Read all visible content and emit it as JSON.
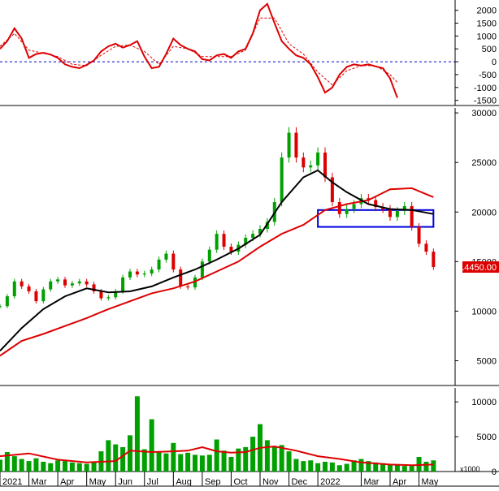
{
  "chart_data": [
    {
      "type": "line",
      "panel": "macd",
      "ylim": [
        -1700,
        2400
      ],
      "yticks": [
        "2000",
        "1500",
        "1000",
        "500",
        "0",
        "-500",
        "-1000",
        "-1500"
      ],
      "ytick_values": [
        2000,
        1500,
        1000,
        500,
        0,
        -500,
        -1000,
        -1500
      ],
      "zero_line": true,
      "series": [
        {
          "name": "",
          "color": "#dd0000",
          "style": "solid",
          "points": [
            [
              0,
              500
            ],
            [
              1,
              800
            ],
            [
              2,
              1300
            ],
            [
              3,
              900
            ],
            [
              4,
              150
            ],
            [
              5,
              300
            ],
            [
              6,
              350
            ],
            [
              7,
              280
            ],
            [
              8,
              150
            ],
            [
              9,
              -100
            ],
            [
              10,
              -200
            ],
            [
              11,
              -250
            ],
            [
              12,
              -120
            ],
            [
              13,
              50
            ],
            [
              14,
              400
            ],
            [
              15,
              600
            ],
            [
              16,
              700
            ],
            [
              17,
              550
            ],
            [
              18,
              650
            ],
            [
              19,
              800
            ],
            [
              20,
              200
            ],
            [
              21,
              -250
            ],
            [
              22,
              -200
            ],
            [
              23,
              300
            ],
            [
              24,
              900
            ],
            [
              25,
              650
            ],
            [
              26,
              500
            ],
            [
              27,
              400
            ],
            [
              28,
              100
            ],
            [
              29,
              50
            ],
            [
              30,
              250
            ],
            [
              31,
              300
            ],
            [
              32,
              150
            ],
            [
              33,
              400
            ],
            [
              34,
              500
            ],
            [
              35,
              1100
            ],
            [
              36,
              2000
            ],
            [
              37,
              2250
            ],
            [
              38,
              1500
            ],
            [
              39,
              800
            ],
            [
              40,
              500
            ],
            [
              41,
              250
            ],
            [
              42,
              150
            ],
            [
              43,
              -100
            ],
            [
              44,
              -600
            ],
            [
              45,
              -1200
            ],
            [
              46,
              -1000
            ],
            [
              47,
              -500
            ],
            [
              48,
              -200
            ],
            [
              49,
              -100
            ],
            [
              50,
              -150
            ],
            [
              51,
              -100
            ],
            [
              52,
              -180
            ],
            [
              53,
              -250
            ],
            [
              54,
              -650
            ],
            [
              55,
              -1400
            ]
          ]
        },
        {
          "name": "",
          "color": "#dd0000",
          "style": "dashed",
          "points": [
            [
              0,
              600
            ],
            [
              2,
              1100
            ],
            [
              4,
              450
            ],
            [
              6,
              330
            ],
            [
              8,
              200
            ],
            [
              10,
              -100
            ],
            [
              12,
              -150
            ],
            [
              14,
              250
            ],
            [
              16,
              600
            ],
            [
              18,
              650
            ],
            [
              20,
              400
            ],
            [
              22,
              -100
            ],
            [
              24,
              600
            ],
            [
              26,
              500
            ],
            [
              28,
              200
            ],
            [
              30,
              200
            ],
            [
              32,
              200
            ],
            [
              34,
              450
            ],
            [
              36,
              1700
            ],
            [
              38,
              1700
            ],
            [
              40,
              700
            ],
            [
              42,
              300
            ],
            [
              44,
              -400
            ],
            [
              46,
              -900
            ],
            [
              48,
              -350
            ],
            [
              50,
              -150
            ],
            [
              52,
              -150
            ],
            [
              54,
              -500
            ],
            [
              55,
              -800
            ]
          ]
        }
      ]
    },
    {
      "type": "candlestick",
      "panel": "price",
      "ylim": [
        2500,
        30500
      ],
      "yticks": [
        "30000",
        "25000",
        "20000",
        "15000",
        "10000",
        "5000"
      ],
      "ytick_values": [
        30000,
        25000,
        20000,
        15000,
        10000,
        5000
      ],
      "last_price_label": "14450.00",
      "last_price": 14450,
      "bullish_color": "#00a000",
      "bearish_color": "#dd0000",
      "close": [
        10500,
        11500,
        13000,
        12500,
        12000,
        11000,
        12200,
        13000,
        13200,
        12600,
        12800,
        13000,
        12700,
        12000,
        11300,
        11400,
        12000,
        13400,
        14000,
        13700,
        13800,
        14200,
        15200,
        15800,
        14200,
        12500,
        12400,
        13400,
        15000,
        16200,
        17800,
        16500,
        16000,
        16700,
        17400,
        17800,
        18300,
        19000,
        21000,
        25500,
        28000,
        25500,
        24500,
        24700,
        26000,
        23500,
        21000,
        19800,
        20300,
        20800,
        21400,
        21200,
        20500,
        20300,
        19500,
        20100,
        20600,
        18500,
        16800,
        16000,
        14450
      ],
      "series": [
        {
          "name": "",
          "color": "#dd0000",
          "points": [
            [
              0,
              5500
            ],
            [
              3,
              7000
            ],
            [
              6,
              7700
            ],
            [
              9,
              8500
            ],
            [
              12,
              9300
            ],
            [
              15,
              10200
            ],
            [
              18,
              11000
            ],
            [
              21,
              11800
            ],
            [
              24,
              12300
            ],
            [
              27,
              13000
            ],
            [
              30,
              14000
            ],
            [
              33,
              15000
            ],
            [
              36,
              16500
            ],
            [
              39,
              17800
            ],
            [
              42,
              18700
            ],
            [
              45,
              20200
            ],
            [
              48,
              20800
            ],
            [
              51,
              21200
            ],
            [
              54,
              22300
            ],
            [
              57,
              22400
            ],
            [
              60,
              21500
            ]
          ]
        },
        {
          "name": "",
          "color": "#000000",
          "points": [
            [
              0,
              6000
            ],
            [
              3,
              8300
            ],
            [
              6,
              10200
            ],
            [
              9,
              11500
            ],
            [
              12,
              12300
            ],
            [
              15,
              11900
            ],
            [
              18,
              12000
            ],
            [
              21,
              12500
            ],
            [
              24,
              13400
            ],
            [
              27,
              14200
            ],
            [
              30,
              15200
            ],
            [
              33,
              16300
            ],
            [
              36,
              17700
            ],
            [
              39,
              21000
            ],
            [
              42,
              23500
            ],
            [
              44,
              24200
            ],
            [
              46,
              23000
            ],
            [
              48,
              22000
            ],
            [
              51,
              20800
            ],
            [
              54,
              20300
            ],
            [
              57,
              20200
            ],
            [
              60,
              19800
            ]
          ]
        }
      ],
      "box": {
        "x": [
          44,
          60
        ],
        "y": [
          18500,
          20200
        ],
        "color": "#0000dd"
      }
    },
    {
      "type": "bar",
      "panel": "volume",
      "ylim": [
        0,
        12000
      ],
      "yticks": [
        "10000",
        "5000",
        "0"
      ],
      "ytick_values": [
        10000,
        5000,
        0
      ],
      "unit_label": "x1000",
      "bar_color": "#00a000",
      "x": [
        0,
        1,
        2,
        3,
        4,
        5,
        6,
        7,
        8,
        9,
        10,
        11,
        12,
        13,
        14,
        15,
        16,
        17,
        18,
        19,
        20,
        21,
        22,
        23,
        24,
        25,
        26,
        27,
        28,
        29,
        30,
        31,
        32,
        33,
        34,
        35,
        36,
        37,
        38,
        39,
        40,
        41,
        42,
        43,
        44,
        45,
        46,
        47,
        48,
        49,
        50,
        51,
        52,
        53,
        54,
        55,
        56,
        57,
        58,
        59,
        60
      ],
      "values": [
        1700,
        2800,
        2200,
        1800,
        1500,
        1900,
        1400,
        1200,
        1600,
        1500,
        1300,
        1200,
        1100,
        1400,
        2900,
        4500,
        3900,
        3500,
        5200,
        10800,
        3200,
        7500,
        2800,
        2600,
        4100,
        2500,
        2700,
        2400,
        2300,
        2400,
        4600,
        3000,
        2100,
        3300,
        3500,
        5000,
        6800,
        4500,
        3500,
        3800,
        2900,
        1800,
        1500,
        1600,
        1200,
        1400,
        1300,
        900,
        1100,
        1600,
        1800,
        1500,
        1300,
        1200,
        1000,
        900,
        800,
        800,
        2100,
        1400,
        1600
      ],
      "series": [
        {
          "name": "",
          "color": "#dd0000",
          "points": [
            [
              0,
              2200
            ],
            [
              4,
              2600
            ],
            [
              8,
              1700
            ],
            [
              12,
              1300
            ],
            [
              16,
              1500
            ],
            [
              18,
              3000
            ],
            [
              21,
              2800
            ],
            [
              24,
              2900
            ],
            [
              26,
              3000
            ],
            [
              28,
              3500
            ],
            [
              30,
              2900
            ],
            [
              32,
              2700
            ],
            [
              34,
              2800
            ],
            [
              36,
              3400
            ],
            [
              38,
              3600
            ],
            [
              41,
              3000
            ],
            [
              44,
              2200
            ],
            [
              47,
              1800
            ],
            [
              50,
              1300
            ],
            [
              54,
              1000
            ],
            [
              57,
              900
            ],
            [
              60,
              1000
            ]
          ]
        }
      ]
    }
  ],
  "x_axis": {
    "min": 0,
    "max": 63,
    "ticks": [
      {
        "label": "2021",
        "x": 0
      },
      {
        "label": "Mar",
        "x": 4
      },
      {
        "label": "Apr",
        "x": 8
      },
      {
        "label": "May",
        "x": 12
      },
      {
        "label": "Jun",
        "x": 16
      },
      {
        "label": "Jul",
        "x": 20
      },
      {
        "label": "Aug",
        "x": 24
      },
      {
        "label": "Sep",
        "x": 28
      },
      {
        "label": "Oct",
        "x": 32
      },
      {
        "label": "Nov",
        "x": 36
      },
      {
        "label": "Dec",
        "x": 40
      },
      {
        "label": "2022",
        "x": 44
      },
      {
        "label": "Mar",
        "x": 50
      },
      {
        "label": "Apr",
        "x": 54
      },
      {
        "label": "May",
        "x": 58
      }
    ]
  }
}
